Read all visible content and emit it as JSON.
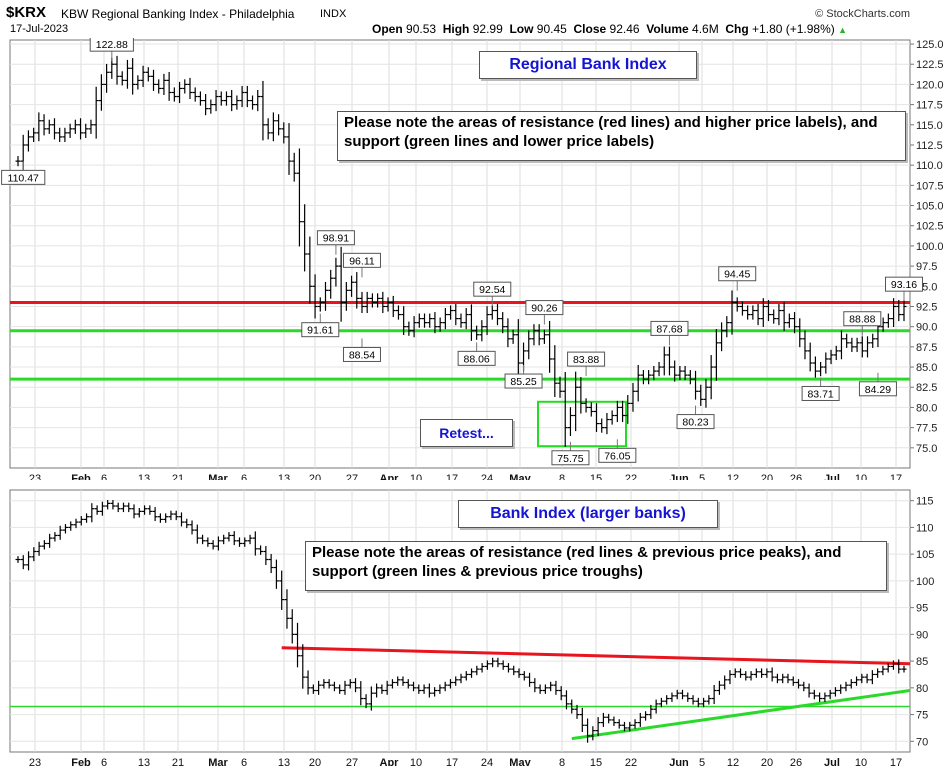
{
  "header": {
    "symbol": "$KRX",
    "name": "KBW Regional Banking Index - Philadelphia",
    "exchange": "INDX",
    "date": "17-Jul-2023",
    "source": "© StockCharts.com",
    "open_label": "Open",
    "open": "90.53",
    "high_label": "High",
    "high": "92.99",
    "low_label": "Low",
    "low": "90.45",
    "close_label": "Close",
    "close": "92.46",
    "volume_label": "Volume",
    "volume": "4.6M",
    "chg_label": "Chg",
    "chg": "+1.80 (+1.98%)"
  },
  "colors": {
    "resistance": "#e8141e",
    "support": "#2bd92b",
    "retest_box": "#22dd22",
    "title_text": "#1414d2",
    "bars": "#000000"
  },
  "chart_data": [
    {
      "type": "ohlc",
      "title": "Regional Bank Index",
      "note": "Please note the areas of resistance (red lines) and higher price labels), and support (green lines and lower price labels)",
      "retest_label": "Retest...",
      "ylim": [
        72.5,
        125.5
      ],
      "yticks": [
        75.0,
        77.5,
        80.0,
        82.5,
        85.0,
        87.5,
        90.0,
        92.5,
        95.0,
        97.5,
        100.0,
        102.5,
        105.0,
        107.5,
        110.0,
        112.5,
        115.0,
        117.5,
        120.0,
        122.5,
        125.0
      ],
      "xticks": [
        "23",
        "Feb",
        "6",
        "13",
        "21",
        "Mar",
        "6",
        "13",
        "20",
        "27",
        "Apr",
        "10",
        "17",
        "24",
        "May",
        "8",
        "15",
        "22",
        "Jun",
        "5",
        "12",
        "20",
        "26",
        "Jul",
        "10",
        "17"
      ],
      "resistance_lines": [
        93.0
      ],
      "support_lines": [
        89.5,
        83.5
      ],
      "retest_box": {
        "x_from": "May 5",
        "x_to": "May 23",
        "y_from": 75.2,
        "y_to": 80.7
      },
      "annotations": [
        {
          "label": "110.47",
          "pos": "below",
          "bar": 1
        },
        {
          "label": "122.88",
          "pos": "above",
          "bar": 18
        },
        {
          "label": "98.91",
          "pos": "above",
          "bar": 61
        },
        {
          "label": "96.11",
          "pos": "above",
          "bar": 66
        },
        {
          "label": "91.61",
          "pos": "below",
          "bar": 58
        },
        {
          "label": "88.54",
          "pos": "below",
          "bar": 66
        },
        {
          "label": "92.54",
          "pos": "above",
          "bar": 91
        },
        {
          "label": "88.06",
          "pos": "below",
          "bar": 88
        },
        {
          "label": "90.26",
          "pos": "above",
          "bar": 101
        },
        {
          "label": "85.25",
          "pos": "below",
          "bar": 97
        },
        {
          "label": "83.88",
          "pos": "above",
          "bar": 109
        },
        {
          "label": "75.75",
          "pos": "below",
          "bar": 106
        },
        {
          "label": "76.05",
          "pos": "below",
          "bar": 115
        },
        {
          "label": "87.68",
          "pos": "above",
          "bar": 125
        },
        {
          "label": "80.23",
          "pos": "below",
          "bar": 130
        },
        {
          "label": "94.45",
          "pos": "above",
          "bar": 138
        },
        {
          "label": "83.71",
          "pos": "below",
          "bar": 154
        },
        {
          "label": "88.88",
          "pos": "above",
          "bar": 162
        },
        {
          "label": "84.29",
          "pos": "below",
          "bar": 165
        },
        {
          "label": "93.16",
          "pos": "above",
          "bar": 173
        }
      ],
      "closes": [
        110.5,
        112.5,
        113.5,
        114.0,
        115.5,
        114.5,
        115.0,
        114.0,
        113.5,
        114.0,
        114.5,
        115.0,
        114.0,
        114.5,
        115.0,
        118.0,
        120.0,
        121.5,
        122.5,
        121.0,
        120.5,
        122.0,
        120.0,
        120.5,
        121.5,
        121.0,
        120.0,
        119.5,
        120.5,
        119.0,
        118.5,
        119.5,
        120.0,
        119.0,
        118.5,
        118.0,
        117.0,
        117.5,
        118.5,
        118.0,
        118.5,
        117.5,
        118.0,
        119.0,
        118.0,
        117.5,
        118.5,
        115.0,
        114.0,
        115.5,
        114.5,
        113.5,
        110.5,
        109.0,
        103.0,
        99.0,
        95.0,
        92.5,
        93.0,
        94.5,
        96.0,
        97.5,
        93.0,
        94.5,
        95.5,
        93.5,
        92.5,
        93.5,
        93.0,
        93.5,
        92.5,
        93.0,
        92.0,
        91.5,
        90.0,
        89.5,
        90.5,
        91.0,
        90.5,
        91.0,
        90.0,
        90.5,
        91.5,
        92.0,
        91.0,
        90.5,
        91.5,
        89.5,
        89.0,
        90.0,
        91.5,
        92.0,
        91.0,
        90.0,
        88.5,
        89.0,
        85.5,
        87.0,
        88.5,
        89.5,
        88.5,
        89.0,
        86.0,
        83.0,
        82.0,
        77.5,
        79.0,
        82.5,
        80.5,
        80.0,
        79.5,
        78.0,
        77.5,
        78.5,
        79.0,
        80.0,
        79.0,
        80.5,
        82.0,
        84.0,
        83.5,
        84.0,
        84.5,
        85.0,
        86.5,
        85.0,
        84.0,
        84.5,
        84.0,
        83.5,
        82.0,
        81.0,
        82.5,
        85.0,
        88.0,
        89.5,
        90.5,
        93.0,
        92.5,
        92.0,
        91.5,
        92.0,
        91.0,
        92.5,
        91.5,
        91.0,
        92.0,
        90.5,
        91.0,
        90.0,
        88.5,
        87.0,
        85.5,
        84.5,
        85.0,
        86.0,
        86.5,
        87.0,
        88.5,
        88.0,
        87.5,
        88.0,
        87.0,
        88.0,
        88.5,
        90.0,
        90.5,
        91.0,
        92.5,
        91.5,
        92.5
      ]
    },
    {
      "type": "ohlc",
      "title": "Bank Index (larger banks)",
      "note": "Please note the areas of resistance (red lines & previous price peaks), and support (green lines & previous price troughs)",
      "ylim": [
        68.0,
        117.0
      ],
      "yticks": [
        70,
        75,
        80,
        85,
        90,
        95,
        100,
        105,
        110,
        115
      ],
      "xticks": [
        "23",
        "Feb",
        "6",
        "13",
        "21",
        "Mar",
        "6",
        "13",
        "20",
        "27",
        "Apr",
        "10",
        "17",
        "24",
        "May",
        "8",
        "15",
        "22",
        "Jun",
        "5",
        "12",
        "20",
        "26",
        "Jul",
        "10",
        "17"
      ],
      "resistance_trend": {
        "from": 87.5,
        "to": 84.5
      },
      "support_trend": {
        "from": 70.5,
        "to": 79.5
      },
      "support_lines": [
        76.5
      ],
      "closes": [
        104.0,
        103.0,
        104.5,
        105.5,
        106.5,
        107.0,
        108.0,
        108.5,
        109.5,
        110.0,
        110.5,
        111.0,
        111.5,
        112.0,
        113.5,
        113.0,
        114.0,
        114.5,
        114.0,
        113.5,
        114.0,
        113.5,
        112.5,
        113.0,
        113.5,
        113.0,
        112.0,
        111.5,
        112.0,
        112.5,
        112.0,
        111.0,
        110.5,
        109.5,
        108.0,
        107.5,
        107.0,
        106.5,
        107.5,
        108.0,
        108.5,
        107.5,
        107.0,
        107.5,
        108.0,
        106.0,
        105.5,
        104.0,
        102.5,
        100.0,
        96.5,
        93.0,
        90.0,
        86.0,
        82.0,
        80.0,
        79.5,
        80.5,
        81.0,
        80.5,
        80.0,
        79.5,
        80.5,
        81.0,
        80.0,
        78.0,
        77.0,
        79.0,
        80.0,
        79.5,
        80.5,
        81.0,
        81.5,
        81.0,
        80.5,
        80.0,
        79.5,
        80.0,
        79.0,
        79.5,
        80.0,
        80.5,
        81.0,
        81.5,
        82.0,
        82.5,
        83.0,
        83.5,
        84.0,
        84.5,
        85.0,
        84.5,
        84.0,
        83.5,
        83.0,
        82.5,
        82.0,
        81.0,
        80.0,
        79.5,
        80.0,
        80.5,
        79.5,
        78.5,
        77.0,
        76.0,
        75.0,
        73.0,
        71.0,
        72.0,
        73.5,
        74.5,
        74.0,
        73.5,
        73.0,
        72.5,
        73.0,
        73.5,
        74.5,
        75.0,
        76.0,
        77.0,
        77.5,
        78.0,
        78.5,
        79.0,
        78.5,
        78.0,
        77.5,
        77.0,
        77.5,
        78.0,
        79.5,
        80.5,
        81.5,
        82.5,
        83.0,
        82.5,
        82.0,
        82.5,
        83.0,
        82.5,
        83.0,
        82.0,
        81.5,
        82.0,
        81.5,
        81.0,
        80.5,
        80.0,
        79.0,
        78.5,
        78.0,
        78.5,
        79.0,
        79.5,
        80.0,
        80.5,
        81.0,
        81.5,
        82.0,
        81.5,
        82.5,
        83.0,
        83.5,
        84.0,
        84.5,
        83.5,
        83.5
      ]
    }
  ]
}
